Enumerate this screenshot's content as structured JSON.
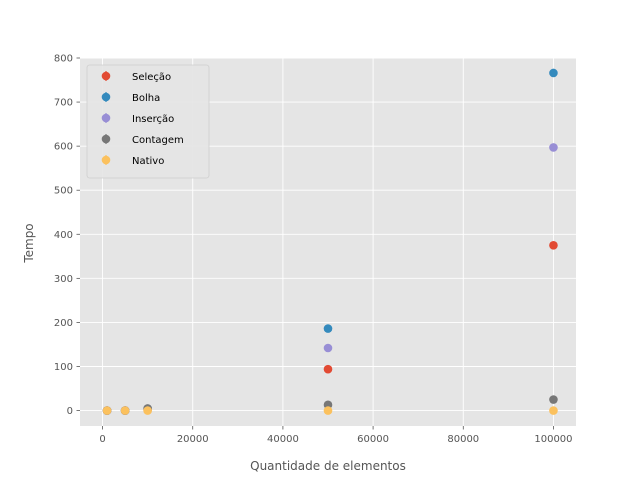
{
  "chart_data": {
    "type": "scatter",
    "xlabel": "Quantidade de elementos",
    "ylabel": "Tempo",
    "xlim": [
      -5000,
      105000
    ],
    "ylim": [
      -35,
      800
    ],
    "xticks": [
      0,
      20000,
      40000,
      60000,
      80000,
      100000
    ],
    "yticks": [
      0,
      100,
      200,
      300,
      400,
      500,
      600,
      700,
      800
    ],
    "grid": true,
    "legend_position": "top-left",
    "x": [
      1000,
      5000,
      10000,
      50000,
      100000
    ],
    "series": [
      {
        "name": "Seleção",
        "color": "#E24A33",
        "values": [
          0,
          0,
          2,
          94,
          375
        ]
      },
      {
        "name": "Bolha",
        "color": "#348ABD",
        "values": [
          0,
          0,
          4,
          186,
          766
        ]
      },
      {
        "name": "Inserção",
        "color": "#988ED5",
        "values": [
          0,
          0,
          3,
          142,
          597
        ]
      },
      {
        "name": "Contagem",
        "color": "#777777",
        "values": [
          0,
          0,
          5,
          13,
          25
        ]
      },
      {
        "name": "Nativo",
        "color": "#FBC15E",
        "values": [
          0,
          0,
          0,
          0,
          0
        ]
      }
    ]
  }
}
